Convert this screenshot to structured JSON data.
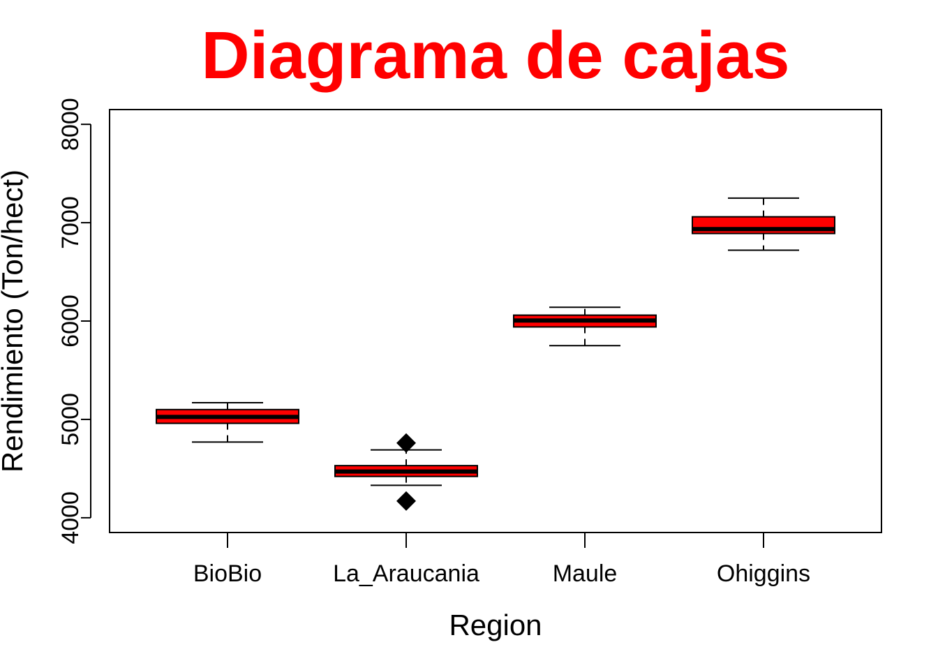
{
  "chart_data": {
    "type": "boxplot",
    "title": "Diagrama de cajas",
    "xlabel": "Region",
    "ylabel": "Rendimiento (Ton/hect)",
    "ylim": [
      3850,
      8150
    ],
    "yticks": [
      "4000",
      "5000",
      "6000",
      "7000",
      "8000"
    ],
    "categories": [
      "BioBio",
      "La_Araucania",
      "Maule",
      "Ohiggins"
    ],
    "series": [
      {
        "category": "BioBio",
        "whisker_low": 4770,
        "q1": 4960,
        "median": 5025,
        "q3": 5100,
        "whisker_high": 5170,
        "outliers": []
      },
      {
        "category": "La_Araucania",
        "whisker_low": 4330,
        "q1": 4420,
        "median": 4470,
        "q3": 4530,
        "whisker_high": 4690,
        "outliers": [
          4760,
          4170
        ]
      },
      {
        "category": "Maule",
        "whisker_low": 5750,
        "q1": 5940,
        "median": 6005,
        "q3": 6060,
        "whisker_high": 6140,
        "outliers": []
      },
      {
        "category": "Ohiggins",
        "whisker_low": 6720,
        "q1": 6890,
        "median": 6935,
        "q3": 7060,
        "whisker_high": 7250,
        "outliers": []
      }
    ],
    "colors": {
      "title": "#ff0000",
      "box_fill": "#ff0000",
      "line": "#000000"
    },
    "grid": false,
    "legend": "none",
    "outlier_marker": "diamond"
  }
}
